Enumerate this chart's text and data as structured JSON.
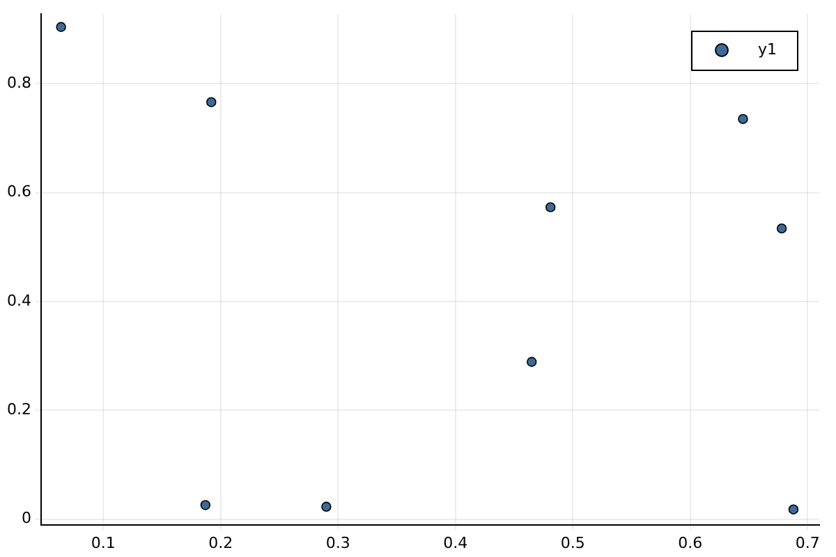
{
  "chart_data": {
    "type": "scatter",
    "series": [
      {
        "name": "y1",
        "color": "#3e6a9a",
        "x": [
          0.064,
          0.192,
          0.187,
          0.29,
          0.465,
          0.481,
          0.645,
          0.678,
          0.688
        ],
        "values": [
          0.904,
          0.766,
          0.026,
          0.023,
          0.289,
          0.573,
          0.735,
          0.534,
          0.018
        ]
      }
    ],
    "xlim": [
      0.047,
      0.71
    ],
    "xticks": [
      0.1,
      0.2,
      0.3,
      0.4,
      0.5,
      0.6,
      0.7
    ],
    "ylim": [
      -0.01,
      0.928
    ],
    "yticks": [
      0,
      0.2,
      0.4,
      0.6,
      0.8
    ],
    "grid": true,
    "legend": "top right",
    "marker": "circle"
  }
}
